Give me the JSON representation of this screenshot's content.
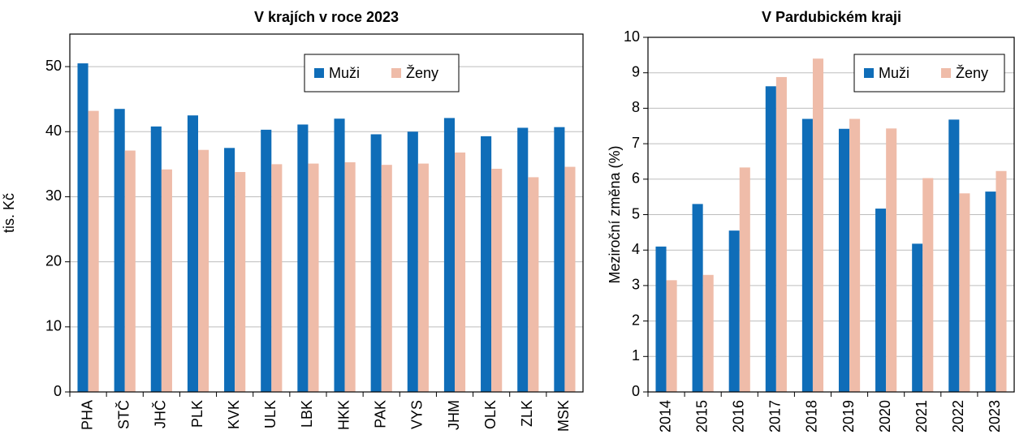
{
  "chart_data": [
    {
      "type": "bar",
      "title": "V krajích v roce 2023",
      "y_label": "tis. Kč",
      "categories": [
        "PHA",
        "STČ",
        "JHČ",
        "PLK",
        "KVK",
        "ULK",
        "LBK",
        "HKK",
        "PAK",
        "VYS",
        "JHM",
        "OLK",
        "ZLK",
        "MSK"
      ],
      "series": [
        {
          "name": "Muži",
          "color": "#0f6db8",
          "values": [
            50.5,
            43.5,
            40.8,
            42.5,
            37.5,
            40.3,
            41.1,
            42.0,
            39.6,
            40.0,
            42.1,
            39.3,
            40.6,
            40.7
          ]
        },
        {
          "name": "Ženy",
          "color": "#efbca9",
          "values": [
            43.2,
            37.1,
            34.2,
            37.2,
            33.8,
            35.0,
            35.1,
            35.3,
            34.9,
            35.1,
            36.8,
            34.3,
            33.0,
            34.6
          ]
        }
      ],
      "ylim": [
        0,
        55
      ],
      "yticks": [
        0,
        10,
        20,
        30,
        40,
        50
      ],
      "grid": true
    },
    {
      "type": "bar",
      "title": "V Pardubickém kraji",
      "y_label": "Meziroční změna (%)",
      "categories": [
        "2014",
        "2015",
        "2016",
        "2017",
        "2018",
        "2019",
        "2020",
        "2021",
        "2022",
        "2023"
      ],
      "series": [
        {
          "name": "Muži",
          "color": "#0f6db8",
          "values": [
            4.1,
            5.3,
            4.55,
            8.62,
            7.7,
            7.42,
            5.17,
            4.18,
            7.68,
            5.65
          ]
        },
        {
          "name": "Ženy",
          "color": "#efbca9",
          "values": [
            3.15,
            3.3,
            6.33,
            8.88,
            9.4,
            7.7,
            7.43,
            6.03,
            5.6,
            6.23
          ]
        }
      ],
      "ylim": [
        0,
        10
      ],
      "yticks": [
        0,
        1,
        2,
        3,
        4,
        5,
        6,
        7,
        8,
        9,
        10
      ],
      "grid": true
    }
  ]
}
